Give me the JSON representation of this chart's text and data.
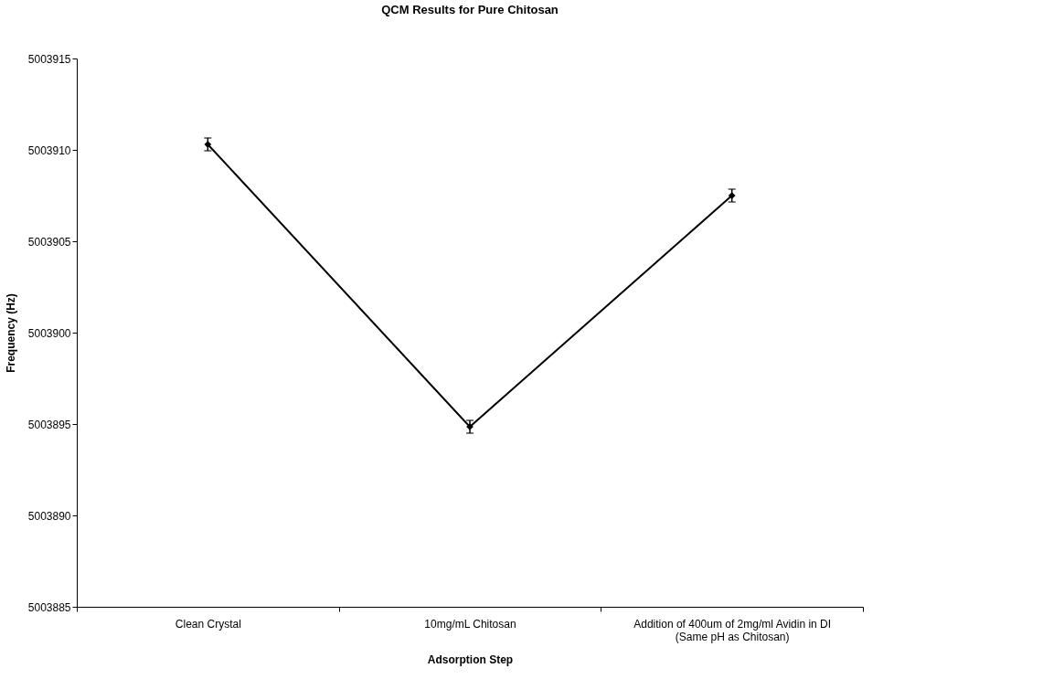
{
  "chart_data": {
    "type": "line",
    "title": "QCM Results for Pure Chitosan",
    "xlabel": "Adsorption Step",
    "ylabel": "Frequency (Hz)",
    "categories": [
      "Clean Crystal",
      "10mg/mL Chitosan",
      "Addition of 400um of 2mg/ml Avidin in DI\n(Same pH as Chitosan)"
    ],
    "series": [
      {
        "color": "#000000",
        "values": [
          5003910.3,
          5003894.85,
          5003907.5
        ],
        "errors": [
          0.35,
          0.35,
          0.35
        ]
      }
    ],
    "ylim": [
      5003885,
      5003915
    ],
    "yticks": [
      5003885,
      5003890,
      5003895,
      5003900,
      5003905,
      5003910,
      5003915
    ],
    "grid": false,
    "marker": "diamond",
    "line_style": "solid"
  }
}
